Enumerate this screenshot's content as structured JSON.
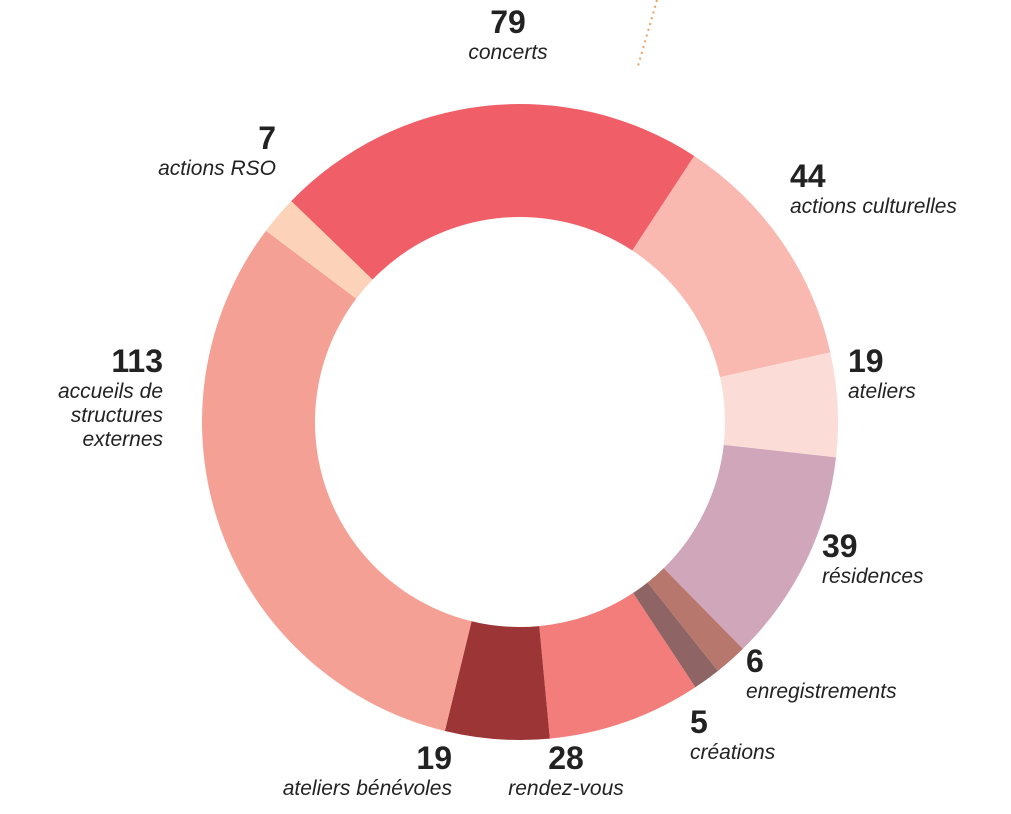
{
  "chart_data": {
    "type": "pie",
    "donut": true,
    "categories": [
      "concerts",
      "actions culturelles",
      "ateliers",
      "résidences",
      "enregistrements",
      "créations",
      "rendez-vous",
      "ateliers bénévoles",
      "accueils de structures externes",
      "actions RSO"
    ],
    "values": [
      79,
      44,
      19,
      39,
      6,
      5,
      28,
      19,
      113,
      7
    ],
    "colors": [
      "#f05e67",
      "#f9b8b0",
      "#fcdcd6",
      "#d0a6bb",
      "#b8776c",
      "#8f6464",
      "#f27d7a",
      "#9c3535",
      "#f5a095",
      "#fcd2b8"
    ]
  }
}
